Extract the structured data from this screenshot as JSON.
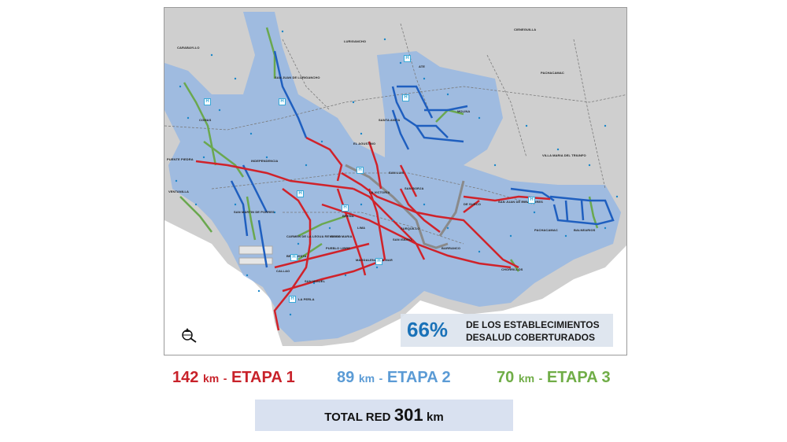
{
  "map": {
    "districts": [
      {
        "id": "carabayllo",
        "label": "CARABAYLLO"
      },
      {
        "id": "lurigancho",
        "label": "LURIGANCHO"
      },
      {
        "id": "cieneguilla",
        "label": "CIENEGUILLA"
      },
      {
        "id": "sjl",
        "label": "SAN JUAN DE LURIGANCHO"
      },
      {
        "id": "ate",
        "label": "ATE"
      },
      {
        "id": "molina",
        "label": "MOLINA"
      },
      {
        "id": "santa-anita",
        "label": "SANTA ANITA"
      },
      {
        "id": "pachacamac",
        "label": "PACHACAMAC"
      },
      {
        "id": "comas",
        "label": "COMAS"
      },
      {
        "id": "el-agustino",
        "label": "EL AGUSTINO"
      },
      {
        "id": "independencia",
        "label": "INDEPENDENCIA"
      },
      {
        "id": "puente-piedra",
        "label": "PUENTE PIEDRA"
      },
      {
        "id": "vmt",
        "label": "VILLA MARIA DEL TRIUNFO"
      },
      {
        "id": "ventanilla",
        "label": "VENTANILLA"
      },
      {
        "id": "san-luis",
        "label": "SAN LUIS"
      },
      {
        "id": "san-borja",
        "label": "SAN BORJA"
      },
      {
        "id": "la-victoria",
        "label": "LA VICTORIA"
      },
      {
        "id": "smp",
        "label": "SAN MARTIN DE PORRES"
      },
      {
        "id": "brena",
        "label": "BREÑA"
      },
      {
        "id": "sjm",
        "label": "SAN JUAN DE MIRAFLORES"
      },
      {
        "id": "surco",
        "label": "DE SURCO"
      },
      {
        "id": "lima",
        "label": "LIMA"
      },
      {
        "id": "jesus-maria",
        "label": "JESUS MARIA"
      },
      {
        "id": "surquillo",
        "label": "SURQUILLO"
      },
      {
        "id": "bellavista",
        "label": "BELLAVISTA"
      },
      {
        "id": "carmen-legua",
        "label": "CARMEN DE LA LEGUA REYNOSO"
      },
      {
        "id": "pueblo-libre",
        "label": "PUEBLO LIBRE"
      },
      {
        "id": "san-isidro",
        "label": "SAN ISIDRO"
      },
      {
        "id": "callao",
        "label": "CALLAO"
      },
      {
        "id": "magdalena",
        "label": "MAGDALENA DEL MAR"
      },
      {
        "id": "barranco",
        "label": "BARRANCO"
      },
      {
        "id": "chorrillos",
        "label": "CHORRILLOS"
      },
      {
        "id": "san-miguel",
        "label": "SAN MIGUEL"
      },
      {
        "id": "la-perla",
        "label": "LA PERLA"
      },
      {
        "id": "pachacamac2",
        "label": "PACHACAMAC"
      },
      {
        "id": "balnearios",
        "label": "BALNEARIOS"
      }
    ],
    "hospital_icon": "H",
    "colors": {
      "etapa1": "#d0222a",
      "etapa2": "#1f5fbf",
      "etapa3": "#6aa84f",
      "coverage": "#8fb4e6",
      "land": "#cfcfcf",
      "sea": "#ffffff"
    }
  },
  "coverage": {
    "percent": "66%",
    "line1": "DE LOS ESTABLECIMIENTOS",
    "line2": "DESALUD COBERTURADOS"
  },
  "north_icon": "compass-icon",
  "stages": [
    {
      "km": "142",
      "unit": "km",
      "sep": "-",
      "label": "ETAPA 1",
      "color": "#c8222a"
    },
    {
      "km": "89",
      "unit": "km",
      "sep": "-",
      "label": "ETAPA 2",
      "color": "#5b9bd5"
    },
    {
      "km": "70",
      "unit": "km",
      "sep": "-",
      "label": "ETAPA 3",
      "color": "#70ad47"
    }
  ],
  "total": {
    "prefix": "TOTAL RED",
    "value": "301",
    "unit": "km"
  }
}
